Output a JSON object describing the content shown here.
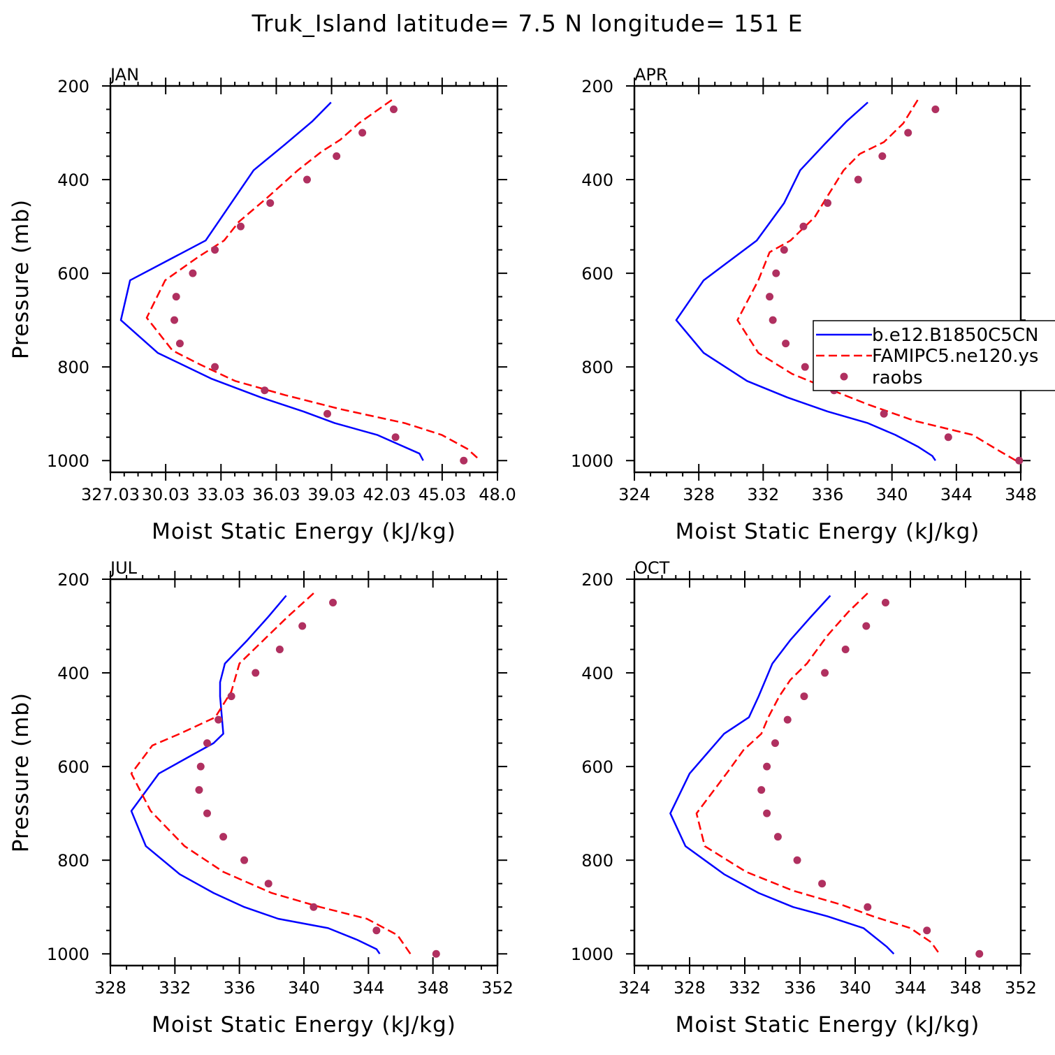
{
  "title": "Truk_Island  latitude= 7.5 N longitude= 151 E",
  "colors": {
    "model1": "#0000ff",
    "model2": "#ff0000",
    "obs": "#b03060"
  },
  "legend": {
    "entries": [
      {
        "label": "b.e12.B1850C5CN",
        "style": "solid",
        "color": "#0000ff"
      },
      {
        "label": "FAMIPC5.ne120.ys",
        "style": "dashed",
        "color": "#ff0000"
      },
      {
        "label": "raobs",
        "style": "marker",
        "color": "#b03060"
      }
    ],
    "placement": "right, overlapping APR panel"
  },
  "chart_data": [
    {
      "type": "line",
      "title": "JAN",
      "xlabel": "Moist Static Energy (kJ/kg)",
      "ylabel": "Pressure (mb)",
      "xlim": [
        327.03,
        348.03
      ],
      "ylim": [
        1025,
        200
      ],
      "y_reversed": true,
      "xticks": [
        327.03,
        330.03,
        333.03,
        336.03,
        339.03,
        342.03,
        345.03,
        348.03
      ],
      "xticklabels": [
        "327.03",
        "30.03",
        "33.03",
        "36.03",
        "39.03",
        "42.03",
        "45.03",
        "48.0"
      ],
      "yticks": [
        200,
        400,
        600,
        800,
        1000
      ],
      "series": [
        {
          "name": "b.e12.B1850C5CN",
          "style": "solid",
          "x": [
            339.0,
            338.0,
            336.5,
            334.8,
            332.2,
            328.1,
            327.6,
            329.6,
            332.5,
            335.2,
            337.5,
            339.2,
            341.5,
            343.8,
            344.0
          ],
          "y": [
            235,
            275,
            325,
            380,
            530,
            615,
            700,
            770,
            825,
            865,
            895,
            920,
            945,
            985,
            1000
          ]
        },
        {
          "name": "FAMIPC5.ne120.ys",
          "style": "dashed",
          "x": [
            342.3,
            340.5,
            339.5,
            338.5,
            337.2,
            335.5,
            334.0,
            333.2,
            331.8,
            330.0,
            329.0,
            330.4,
            331.9,
            333.8,
            336.5,
            339.5,
            343.0,
            345.0,
            346.4,
            347.1
          ],
          "y": [
            230,
            280,
            315,
            340,
            380,
            440,
            490,
            530,
            565,
            615,
            695,
            765,
            795,
            830,
            860,
            890,
            920,
            945,
            975,
            1000
          ]
        },
        {
          "name": "raobs",
          "style": "marker",
          "x": [
            342.4,
            340.7,
            339.3,
            337.7,
            335.7,
            334.1,
            332.7,
            331.5,
            330.6,
            330.5,
            330.8,
            332.7,
            335.4,
            338.8,
            342.5,
            346.2
          ],
          "y": [
            250,
            300,
            350,
            400,
            450,
            500,
            550,
            600,
            650,
            700,
            750,
            800,
            850,
            900,
            950,
            1000
          ]
        }
      ]
    },
    {
      "type": "line",
      "title": "APR",
      "xlabel": "Moist Static Energy (kJ/kg)",
      "ylabel": "",
      "xlim": [
        324,
        348
      ],
      "ylim": [
        1025,
        200
      ],
      "y_reversed": true,
      "xticks": [
        324,
        328,
        332,
        336,
        340,
        344,
        348
      ],
      "xticklabels": [
        "324",
        "328",
        "332",
        "336",
        "340",
        "344",
        "348"
      ],
      "yticks": [
        200,
        400,
        600,
        800,
        1000
      ],
      "series": [
        {
          "name": "b.e12.B1850C5CN",
          "style": "solid",
          "x": [
            338.5,
            337.2,
            335.8,
            334.3,
            333.3,
            331.6,
            328.3,
            326.6,
            328.3,
            331.0,
            333.5,
            336.0,
            338.5,
            340.2,
            341.6,
            342.5,
            342.7
          ],
          "y": [
            235,
            275,
            325,
            380,
            450,
            530,
            615,
            700,
            770,
            830,
            865,
            895,
            920,
            945,
            970,
            990,
            1000
          ]
        },
        {
          "name": "FAMIPC5.ne120.ys",
          "style": "dashed",
          "x": [
            341.6,
            340.7,
            339.5,
            338.0,
            337.0,
            336.0,
            335.2,
            333.7,
            332.4,
            331.7,
            330.4,
            331.7,
            333.8,
            336.3,
            338.5,
            341.4,
            345.0,
            346.7,
            347.7
          ],
          "y": [
            230,
            280,
            320,
            345,
            380,
            435,
            480,
            530,
            555,
            615,
            700,
            770,
            815,
            850,
            880,
            915,
            945,
            980,
            1000
          ]
        },
        {
          "name": "raobs",
          "style": "marker",
          "x": [
            342.7,
            341.0,
            339.4,
            337.9,
            336.0,
            334.5,
            333.3,
            332.8,
            332.4,
            332.6,
            333.4,
            334.6,
            336.4,
            339.5,
            343.5,
            347.9
          ],
          "y": [
            250,
            300,
            350,
            400,
            450,
            500,
            550,
            600,
            650,
            700,
            750,
            800,
            850,
            900,
            950,
            1000
          ]
        }
      ]
    },
    {
      "type": "line",
      "title": "JUL",
      "xlabel": "Moist Static Energy (kJ/kg)",
      "ylabel": "Pressure (mb)",
      "xlim": [
        328,
        352
      ],
      "ylim": [
        1025,
        200
      ],
      "y_reversed": true,
      "xticks": [
        328,
        332,
        336,
        340,
        344,
        348,
        352
      ],
      "xticklabels": [
        "328",
        "332",
        "336",
        "340",
        "344",
        "348",
        "352"
      ],
      "yticks": [
        200,
        400,
        600,
        800,
        1000
      ],
      "series": [
        {
          "name": "b.e12.B1850C5CN",
          "style": "solid",
          "x": [
            338.9,
            337.8,
            336.5,
            335.1,
            334.8,
            334.8,
            335.0,
            334.4,
            331.0,
            329.3,
            330.2,
            332.3,
            334.4,
            336.3,
            338.4,
            341.5,
            343.3,
            344.5,
            344.7
          ],
          "y": [
            235,
            280,
            330,
            380,
            420,
            450,
            530,
            550,
            615,
            695,
            770,
            830,
            870,
            900,
            925,
            945,
            970,
            990,
            1000
          ]
        },
        {
          "name": "FAMIPC5.ne120.ys",
          "style": "dashed",
          "x": [
            340.6,
            339.0,
            337.5,
            336.0,
            335.5,
            334.5,
            332.3,
            330.6,
            329.3,
            330.5,
            332.6,
            335.0,
            338.0,
            341.0,
            343.9,
            345.8,
            346.6
          ],
          "y": [
            230,
            280,
            330,
            380,
            440,
            495,
            530,
            555,
            615,
            695,
            770,
            825,
            870,
            900,
            925,
            960,
            1000
          ]
        },
        {
          "name": "raobs",
          "style": "marker",
          "x": [
            341.8,
            339.9,
            338.5,
            337.0,
            335.5,
            334.7,
            334.0,
            333.6,
            333.5,
            334.0,
            335.0,
            336.3,
            337.8,
            340.6,
            344.5,
            348.2
          ],
          "y": [
            250,
            300,
            350,
            400,
            450,
            500,
            550,
            600,
            650,
            700,
            750,
            800,
            850,
            900,
            950,
            1000
          ]
        }
      ]
    },
    {
      "type": "line",
      "title": "OCT",
      "xlabel": "Moist Static Energy (kJ/kg)",
      "ylabel": "",
      "xlim": [
        324,
        352
      ],
      "ylim": [
        1025,
        200
      ],
      "y_reversed": true,
      "xticks": [
        324,
        328,
        332,
        336,
        340,
        344,
        348,
        352
      ],
      "xticklabels": [
        "324",
        "328",
        "332",
        "336",
        "340",
        "344",
        "348",
        "352"
      ],
      "yticks": [
        200,
        400,
        600,
        800,
        1000
      ],
      "series": [
        {
          "name": "b.e12.B1850C5CN",
          "style": "solid",
          "x": [
            338.2,
            336.8,
            335.3,
            334.0,
            333.0,
            332.3,
            330.5,
            328.0,
            326.6,
            327.7,
            330.5,
            333.0,
            335.5,
            338.0,
            340.6,
            342.3,
            342.8
          ],
          "y": [
            235,
            280,
            330,
            380,
            450,
            495,
            530,
            615,
            700,
            770,
            830,
            870,
            900,
            920,
            945,
            985,
            1000
          ]
        },
        {
          "name": "FAMIPC5.ne120.ys",
          "style": "dashed",
          "x": [
            340.9,
            339.5,
            338.0,
            336.5,
            335.3,
            334.5,
            333.7,
            333.2,
            331.9,
            330.8,
            328.5,
            329.1,
            332.1,
            335.5,
            339.0,
            341.3,
            344.0,
            345.5,
            346.1
          ],
          "y": [
            230,
            270,
            320,
            380,
            415,
            450,
            495,
            530,
            565,
            610,
            700,
            770,
            825,
            865,
            895,
            920,
            945,
            975,
            1000
          ]
        },
        {
          "name": "raobs",
          "style": "marker",
          "x": [
            342.2,
            340.8,
            339.3,
            337.8,
            336.3,
            335.1,
            334.2,
            333.6,
            333.2,
            333.6,
            334.4,
            335.8,
            337.6,
            340.9,
            345.2,
            349.0
          ],
          "y": [
            250,
            300,
            350,
            400,
            450,
            500,
            550,
            600,
            650,
            700,
            750,
            800,
            850,
            900,
            950,
            1000
          ]
        }
      ]
    }
  ]
}
